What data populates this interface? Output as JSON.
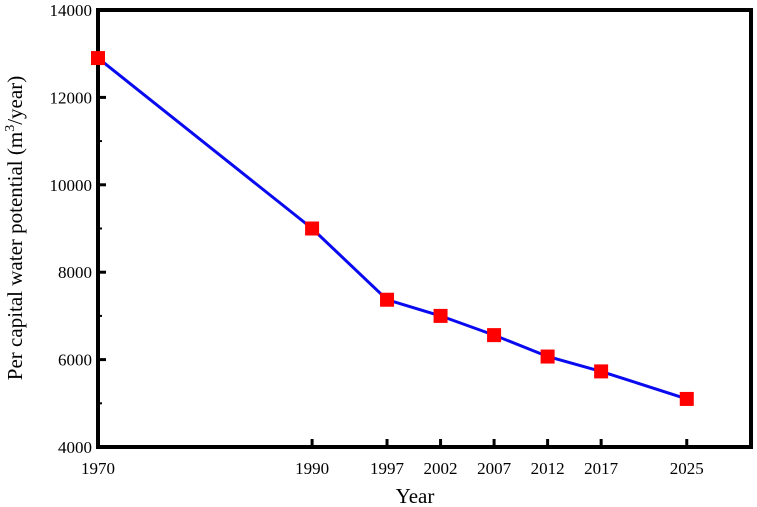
{
  "chart_data": {
    "type": "line",
    "xlabel": "Year",
    "ylabel_main": "Per capital water potential (m",
    "ylabel_sup": "3",
    "ylabel_tail": "/year)",
    "x": [
      1970,
      1990,
      1997,
      2002,
      2007,
      2012,
      2017,
      2025
    ],
    "xlim": [
      1970,
      2031
    ],
    "ylim": [
      4000,
      14000
    ],
    "yticks": [
      4000,
      6000,
      8000,
      10000,
      12000,
      14000
    ],
    "series": [
      {
        "values": [
          12900,
          9000,
          7370,
          7000,
          6560,
          6070,
          5730,
          5100
        ],
        "line_color": "#0a0af0",
        "marker_color": "#ff0000",
        "marker": "square"
      }
    ],
    "grid": false,
    "legend": "none"
  }
}
